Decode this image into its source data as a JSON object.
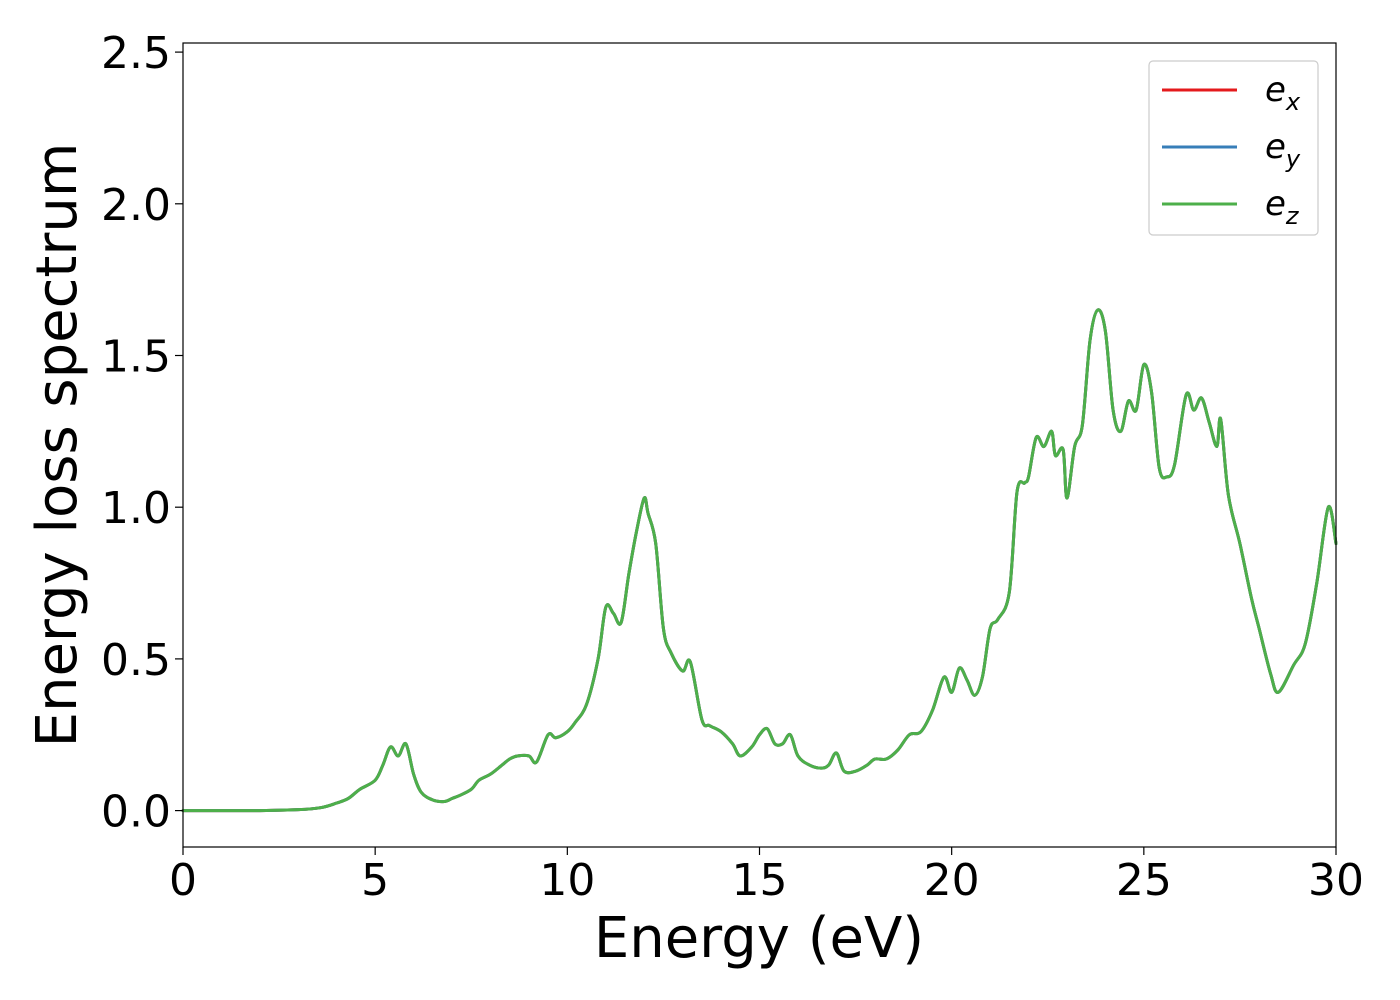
{
  "chart_data": {
    "type": "line",
    "xlabel": "Energy (eV)",
    "ylabel": "Energy loss spectrum",
    "xlim": [
      0,
      30
    ],
    "ylim": [
      -0.12,
      2.53
    ],
    "xticks": [
      0,
      5,
      10,
      15,
      20,
      25,
      30
    ],
    "yticks": [
      0.0,
      0.5,
      1.0,
      1.5,
      2.0,
      2.5
    ],
    "xtick_labels": [
      "0",
      "5",
      "10",
      "15",
      "20",
      "25",
      "30"
    ],
    "ytick_labels": [
      "0.0",
      "0.5",
      "1.0",
      "1.5",
      "2.0",
      "2.5"
    ],
    "grid": false,
    "legend": {
      "placement": "top-right",
      "entries": [
        {
          "base": "e",
          "sub": "x",
          "color": "#e41a1c"
        },
        {
          "base": "e",
          "sub": "y",
          "color": "#377eb8"
        },
        {
          "base": "e",
          "sub": "z",
          "color": "#4daf4a"
        }
      ]
    },
    "series": [
      {
        "sub": "x",
        "color": "#e41a1c"
      },
      {
        "sub": "y",
        "color": "#377eb8"
      },
      {
        "sub": "z",
        "color": "#4daf4a"
      }
    ],
    "x": [
      0,
      1,
      2,
      3,
      3.6,
      4.0,
      4.3,
      4.6,
      5.0,
      5.2,
      5.4,
      5.6,
      5.8,
      6.0,
      6.2,
      6.5,
      6.8,
      7.0,
      7.2,
      7.5,
      7.7,
      8.0,
      8.3,
      8.5,
      8.7,
      9.0,
      9.2,
      9.5,
      9.7,
      10.0,
      10.2,
      10.5,
      10.8,
      11.0,
      11.2,
      11.4,
      11.6,
      11.8,
      12.0,
      12.1,
      12.3,
      12.5,
      12.7,
      13.0,
      13.2,
      13.5,
      13.7,
      14.0,
      14.3,
      14.5,
      14.8,
      15.0,
      15.2,
      15.4,
      15.6,
      15.8,
      16.0,
      16.3,
      16.6,
      16.8,
      17.0,
      17.2,
      17.5,
      17.8,
      18.0,
      18.3,
      18.6,
      18.9,
      19.2,
      19.5,
      19.8,
      20.0,
      20.2,
      20.4,
      20.6,
      20.8,
      21.0,
      21.2,
      21.5,
      21.7,
      21.9,
      22.0,
      22.2,
      22.4,
      22.6,
      22.7,
      22.9,
      23.0,
      23.2,
      23.4,
      23.6,
      23.8,
      24.0,
      24.2,
      24.4,
      24.6,
      24.8,
      25.0,
      25.2,
      25.4,
      25.6,
      25.8,
      26.1,
      26.3,
      26.5,
      26.7,
      26.9,
      27.0,
      27.2,
      27.5,
      27.8,
      28.0,
      28.3,
      28.5,
      28.9,
      29.2,
      29.5,
      29.8,
      30.0
    ],
    "y": [
      0,
      0,
      0,
      0.003,
      0.01,
      0.025,
      0.04,
      0.07,
      0.1,
      0.15,
      0.21,
      0.18,
      0.22,
      0.12,
      0.06,
      0.035,
      0.03,
      0.04,
      0.05,
      0.07,
      0.1,
      0.12,
      0.15,
      0.17,
      0.18,
      0.18,
      0.16,
      0.25,
      0.24,
      0.26,
      0.29,
      0.35,
      0.5,
      0.67,
      0.65,
      0.62,
      0.78,
      0.92,
      1.03,
      0.98,
      0.88,
      0.6,
      0.52,
      0.46,
      0.49,
      0.3,
      0.28,
      0.26,
      0.22,
      0.18,
      0.21,
      0.25,
      0.27,
      0.22,
      0.22,
      0.25,
      0.18,
      0.15,
      0.14,
      0.15,
      0.19,
      0.13,
      0.13,
      0.15,
      0.17,
      0.17,
      0.2,
      0.25,
      0.26,
      0.33,
      0.44,
      0.39,
      0.47,
      0.43,
      0.38,
      0.44,
      0.6,
      0.63,
      0.72,
      1.05,
      1.08,
      1.1,
      1.23,
      1.2,
      1.25,
      1.17,
      1.19,
      1.03,
      1.2,
      1.27,
      1.55,
      1.65,
      1.58,
      1.32,
      1.25,
      1.35,
      1.32,
      1.47,
      1.38,
      1.13,
      1.1,
      1.14,
      1.37,
      1.32,
      1.36,
      1.28,
      1.2,
      1.29,
      1.04,
      0.88,
      0.7,
      0.6,
      0.45,
      0.39,
      0.48,
      0.55,
      0.75,
      1.0,
      0.88
    ]
  }
}
